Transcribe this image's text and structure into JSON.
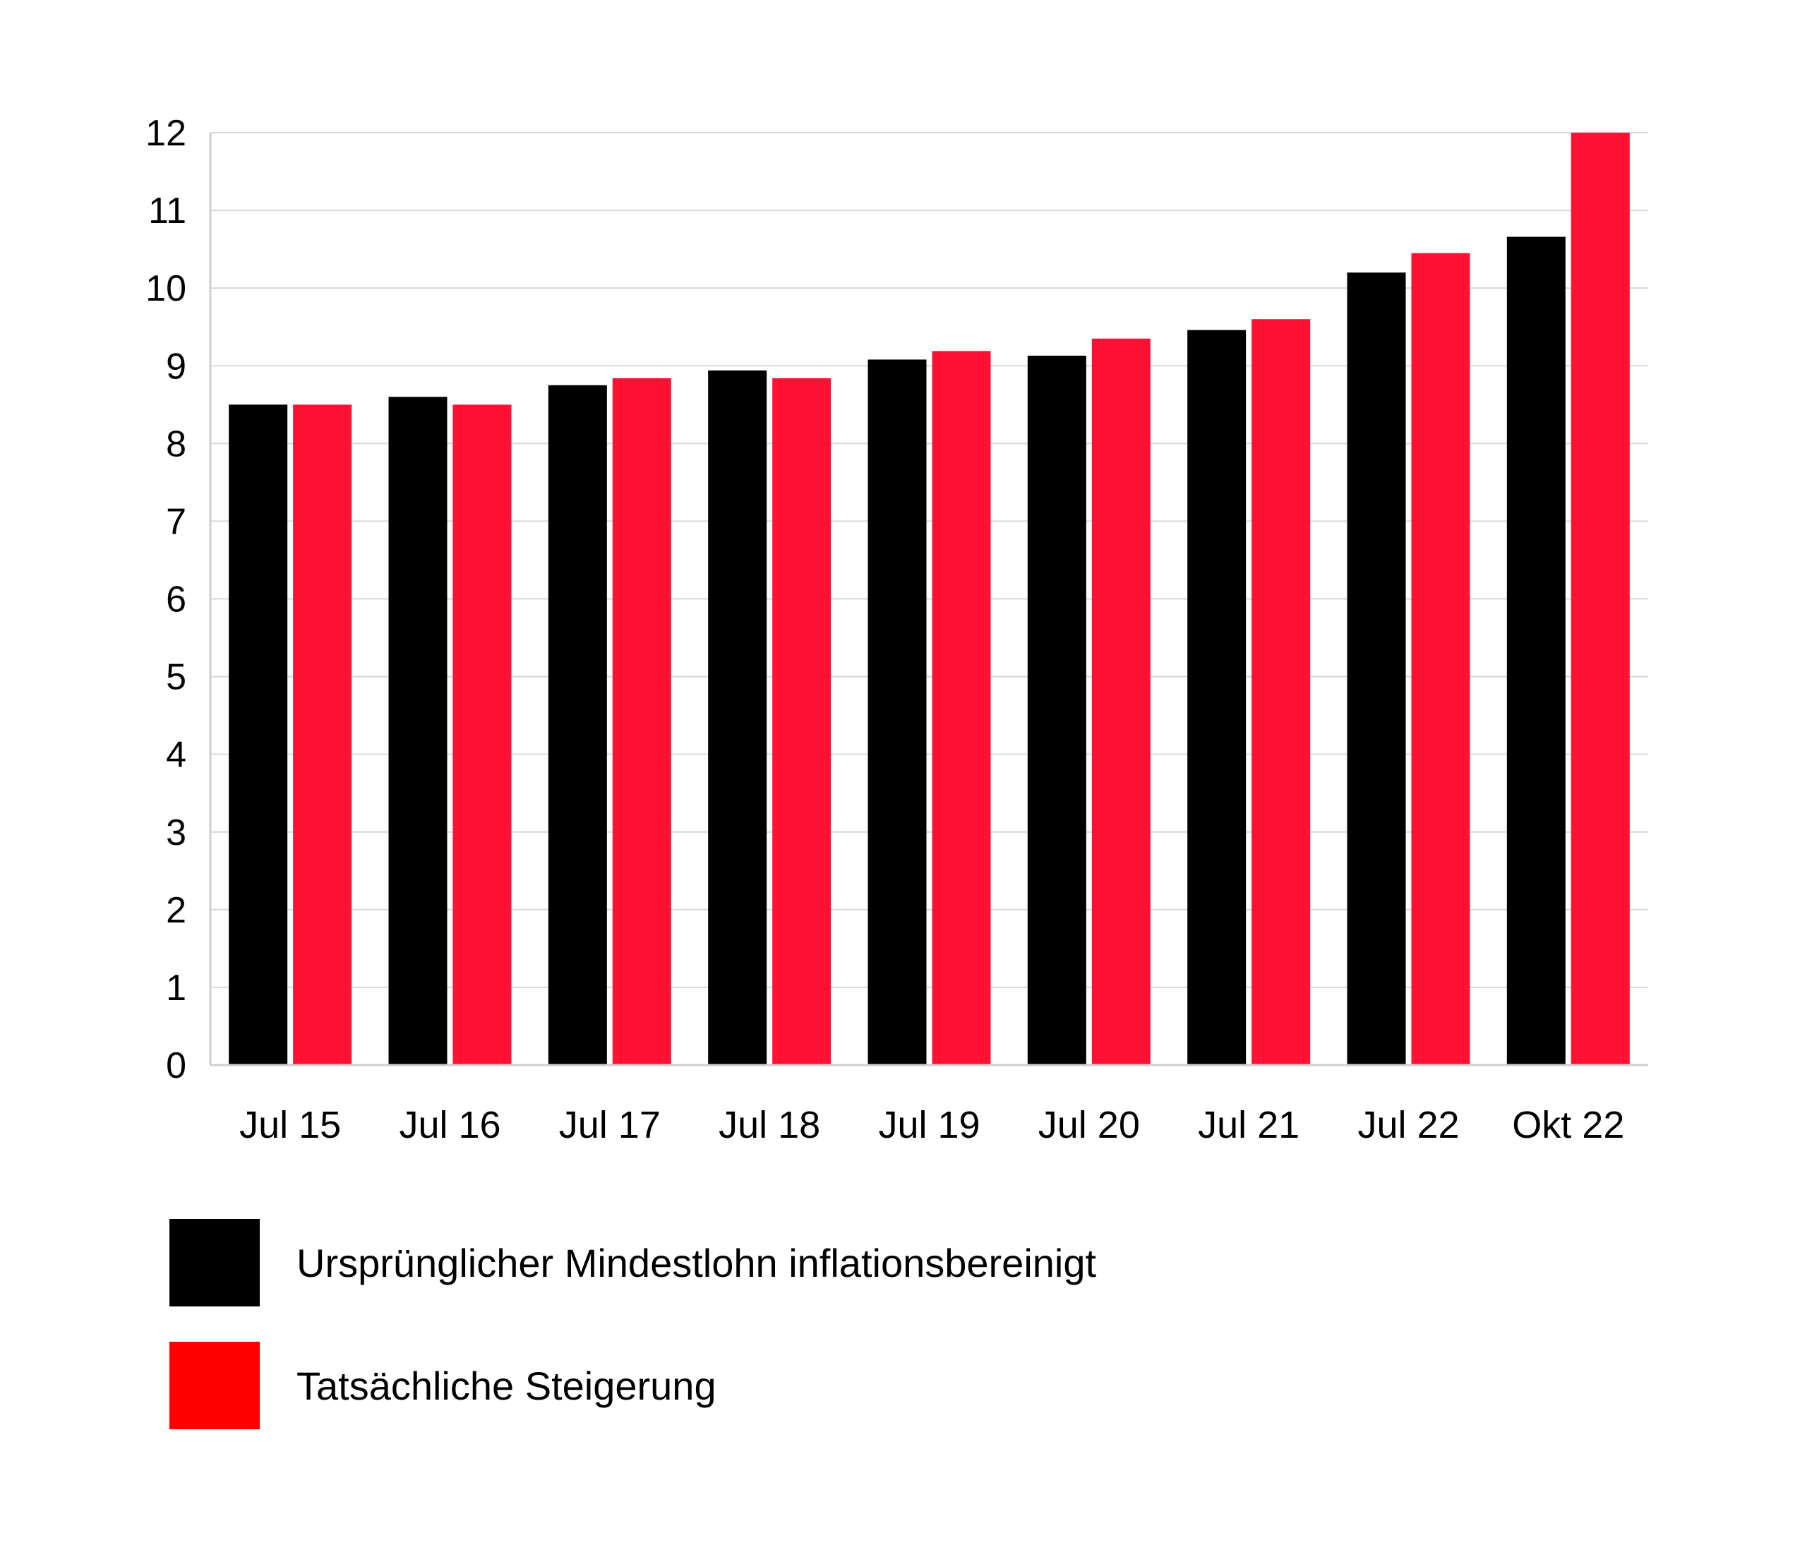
{
  "chart_data": {
    "type": "bar",
    "title": "",
    "xlabel": "",
    "ylabel": "",
    "ylim": [
      0,
      12
    ],
    "yticks": [
      0,
      1,
      2,
      3,
      4,
      5,
      6,
      7,
      8,
      9,
      10,
      11,
      12
    ],
    "grid": true,
    "legend_position": "bottom-left",
    "categories": [
      "Jul 15",
      "Jul 16",
      "Jul 17",
      "Jul 18",
      "Jul 19",
      "Jul 20",
      "Jul 21",
      "Jul 22",
      "Okt 22"
    ],
    "series": [
      {
        "name": "Ursprünglicher Mindestlohn inflationsbereinigt",
        "color": "#000000",
        "values": [
          8.5,
          8.6,
          8.75,
          8.94,
          9.08,
          9.13,
          9.46,
          10.2,
          10.66
        ]
      },
      {
        "name": "Tatsächliche Steigerung",
        "color": "#FF1133",
        "values": [
          8.5,
          8.5,
          8.84,
          8.84,
          9.19,
          9.35,
          9.6,
          10.45,
          12.0
        ]
      }
    ],
    "legend_swatch_colors": [
      "#000000",
      "#FF0000"
    ],
    "grid_color": "#d9d9d9",
    "axis_color": "#cfcfcf"
  }
}
